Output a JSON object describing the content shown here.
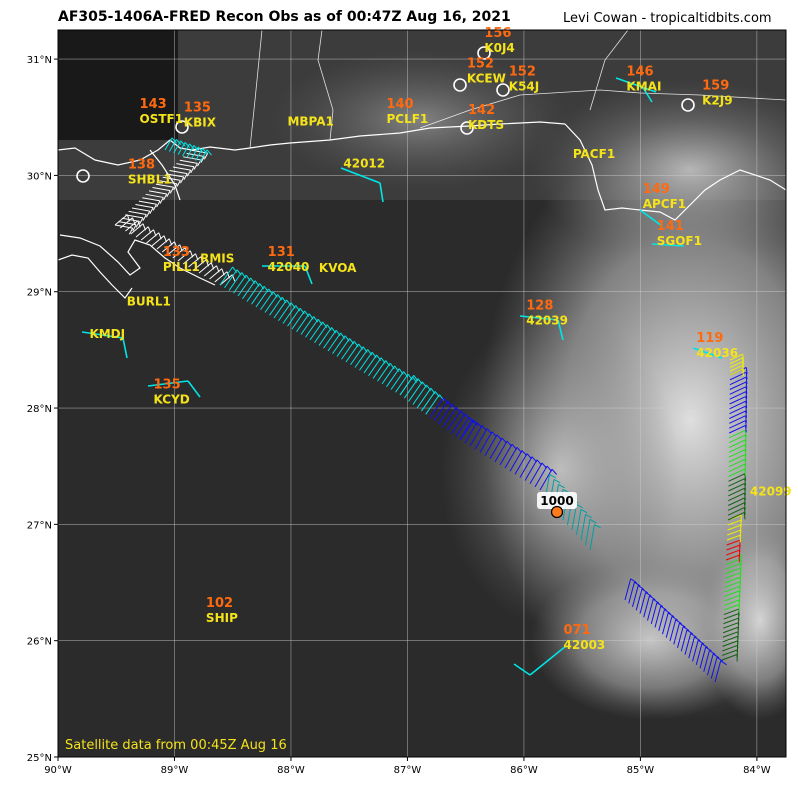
{
  "header": {
    "title": "AF305-1406A-FRED Recon Obs as of 00:47Z Aug 16, 2021",
    "credit": "Levi Cowan - tropicaltidbits.com"
  },
  "footer": {
    "satellite_note": "Satellite data from 00:45Z Aug 16"
  },
  "axes": {
    "x_ticks": [
      "90°W",
      "89°W",
      "88°W",
      "87°W",
      "86°W",
      "85°W",
      "84°W"
    ],
    "y_ticks": [
      "31°N",
      "30°N",
      "29°N",
      "28°N",
      "27°N",
      "26°N",
      "25°N"
    ],
    "lon_range": [
      -90,
      -83.75
    ],
    "lat_range": [
      25,
      31.25
    ]
  },
  "center": {
    "pressure_label": "1000",
    "lon": -85.67,
    "lat": 27.09,
    "marker_color": "#ff7a1a"
  },
  "stations": [
    {
      "id": "K0J4",
      "lon": -86.34,
      "lat": 31.06,
      "value": "156"
    },
    {
      "id": "KCEW",
      "lon": -86.49,
      "lat": 30.8,
      "value": "152"
    },
    {
      "id": "K54J",
      "lon": -86.13,
      "lat": 30.73,
      "value": "152"
    },
    {
      "id": "KMAI",
      "lon": -85.12,
      "lat": 30.73,
      "value": "146"
    },
    {
      "id": "K2J9",
      "lon": -84.47,
      "lat": 30.61,
      "value": "159"
    },
    {
      "id": "KBIX",
      "lon": -88.92,
      "lat": 30.42,
      "value": "135"
    },
    {
      "id": "OSTF1",
      "lon": -89.3,
      "lat": 30.45,
      "value": "143"
    },
    {
      "id": "MBPA1",
      "lon": -88.03,
      "lat": 30.43,
      "value": ""
    },
    {
      "id": "PCLF1",
      "lon": -87.18,
      "lat": 30.45,
      "value": "140"
    },
    {
      "id": "KDTS",
      "lon": -86.48,
      "lat": 30.4,
      "value": "142"
    },
    {
      "id": "PACF1",
      "lon": -85.58,
      "lat": 30.15,
      "value": ""
    },
    {
      "id": "42012",
      "lon": -87.55,
      "lat": 30.07,
      "value": ""
    },
    {
      "id": "SHBL1",
      "lon": -89.4,
      "lat": 29.93,
      "value": "138"
    },
    {
      "id": "APCF1",
      "lon": -84.98,
      "lat": 29.72,
      "value": "149"
    },
    {
      "id": "SGOF1",
      "lon": -84.86,
      "lat": 29.4,
      "value": "141"
    },
    {
      "id": "PILL1",
      "lon": -89.1,
      "lat": 29.18,
      "value": "133"
    },
    {
      "id": "RMIS",
      "lon": -88.78,
      "lat": 29.25,
      "value": ""
    },
    {
      "id": "42040",
      "lon": -88.2,
      "lat": 29.18,
      "value": "131"
    },
    {
      "id": "KVOA",
      "lon": -87.76,
      "lat": 29.17,
      "value": ""
    },
    {
      "id": "BURL1",
      "lon": -89.41,
      "lat": 28.88,
      "value": ""
    },
    {
      "id": "42039",
      "lon": -85.98,
      "lat": 28.72,
      "value": "128"
    },
    {
      "id": "KMDJ",
      "lon": -89.73,
      "lat": 28.6,
      "value": ""
    },
    {
      "id": "42036",
      "lon": -84.52,
      "lat": 28.44,
      "value": "119"
    },
    {
      "id": "KCYD",
      "lon": -89.18,
      "lat": 28.04,
      "value": "135"
    },
    {
      "id": "42099",
      "lon": -84.06,
      "lat": 27.25,
      "value": ""
    },
    {
      "id": "SHIP",
      "lon": -88.73,
      "lat": 26.16,
      "value": "102"
    },
    {
      "id": "42003",
      "lon": -85.66,
      "lat": 25.93,
      "value": "071"
    }
  ],
  "colors": {
    "coast": "#ffffff",
    "grid": "#cfcfcf",
    "label": "#f5e31a",
    "pressure": "#ff6a10",
    "barb_cyan": "#00e5e5",
    "barb_blue": "#1010f0",
    "barb_teal": "#00a0a0",
    "barb_green": "#20e020",
    "barb_darkgreen": "#106010",
    "barb_yellow": "#f0f000",
    "barb_red": "#f00000",
    "barb_white": "#ffffff"
  }
}
